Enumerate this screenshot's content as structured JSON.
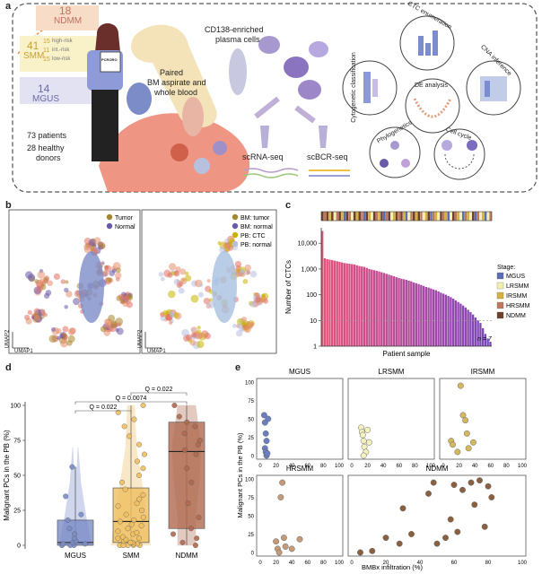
{
  "panel_labels": {
    "a": "a",
    "b": "b",
    "c": "c",
    "d": "d",
    "e": "e"
  },
  "panel_a": {
    "groups": {
      "ndmm_n": "18",
      "ndmm": "NDMM",
      "smm_n": "41",
      "smm": "SMM",
      "hr_n": "15",
      "hr": "high-risk",
      "ir_n": "11",
      "ir": "int.-risk",
      "lr_n": "15",
      "lr": "low-risk",
      "mgus_n": "14",
      "mgus": "MGUS"
    },
    "patients": "73 patients",
    "donors_1": "28 healthy",
    "donors_2": "donors",
    "clipboard": "PCRORO",
    "paired_1": "Paired",
    "paired_2": "BM aspirate and",
    "paired_3": "whole blood",
    "cd138_1": "CD138-enriched",
    "cd138_2": "plasma cells",
    "scrna": "scRNA-seq",
    "scbcr": "scBCR-seq",
    "analyses": [
      "Cytogenetic classification",
      "CTC enumeration",
      "DE analysis",
      "CNA inference",
      "Phylogenetics",
      "Cell cycle"
    ]
  },
  "panel_b": {
    "legend_left": [
      "Tumor",
      "Normal"
    ],
    "legend_right": [
      "BM: tumor",
      "BM: normal",
      "PB: CTC",
      "PB: normal"
    ],
    "colors_left": [
      "#a8862e",
      "#6b58a8"
    ],
    "colors_right": [
      "#a8862e",
      "#6b58a8",
      "#c8b400",
      "#b8bde0"
    ],
    "xaxis": "UMAP1",
    "yaxis": "UMAP2"
  },
  "chart_data": [
    {
      "type": "bar",
      "panel": "c",
      "ylabel": "Number of CTCs",
      "xlabel": "Patient sample",
      "yticks": [
        "10,000",
        "1,000",
        "100",
        "10",
        "1"
      ],
      "threshold": 10,
      "annotation": "n = 7",
      "legend_title": "Stage",
      "legend": [
        "MGUS",
        "LRSMM",
        "IRSMM",
        "HRSMM",
        "NDMM"
      ],
      "legend_colors": [
        "#5a6db5",
        "#f4f0b0",
        "#d8b040",
        "#c07a5a",
        "#6e3f2a"
      ],
      "values": [
        30000,
        2600,
        2400,
        2300,
        2200,
        2100,
        2000,
        1900,
        1800,
        1700,
        1650,
        1600,
        1550,
        1500,
        1400,
        1300,
        1250,
        1200,
        1100,
        1000,
        950,
        900,
        850,
        800,
        750,
        700,
        650,
        600,
        560,
        520,
        480,
        450,
        420,
        400,
        380,
        350,
        330,
        300,
        280,
        260,
        240,
        220,
        200,
        190,
        175,
        160,
        150,
        135,
        120,
        110,
        100,
        90,
        80,
        70,
        60,
        52,
        45,
        38,
        32,
        26,
        21,
        17,
        13,
        10,
        8,
        5,
        3,
        2,
        1.5
      ],
      "stages": [
        4,
        3,
        4,
        2,
        4,
        1,
        3,
        4,
        2,
        0,
        4,
        3,
        1,
        4,
        2,
        4,
        3,
        0,
        4,
        2,
        1,
        4,
        3,
        2,
        4,
        0,
        3,
        4,
        1,
        2,
        4,
        3,
        4,
        2,
        0,
        1,
        3,
        4,
        2,
        4,
        3,
        1,
        2,
        4,
        0,
        3,
        2,
        1,
        4,
        3,
        2,
        0,
        1,
        4,
        3,
        2,
        1,
        0,
        3,
        2,
        1,
        4,
        0,
        3,
        1,
        2,
        0,
        1,
        3
      ]
    },
    {
      "type": "box",
      "panel": "d",
      "ylabel": "Malignant PCs in the PB (%)",
      "categories": [
        "MGUS",
        "SMM",
        "NDMM"
      ],
      "colors": [
        "#7b8cc8",
        "#f0c060",
        "#b06a50"
      ],
      "yticks": [
        "0",
        "25",
        "50",
        "75",
        "100"
      ],
      "brackets": [
        {
          "label": "Q = 0.022",
          "from": 1,
          "to": 2
        },
        {
          "label": "Q = 0.0074",
          "from": 0,
          "to": 2
        },
        {
          "label": "Q = 0.022",
          "from": 0,
          "to": 1
        }
      ],
      "boxes": [
        {
          "q1": 0,
          "median": 2,
          "q3": 18,
          "lo": 0,
          "hi": 56
        },
        {
          "q1": 2,
          "median": 17,
          "q3": 41,
          "lo": 0,
          "hi": 100
        },
        {
          "q1": 12,
          "median": 67,
          "q3": 88,
          "lo": 0,
          "hi": 100
        }
      ],
      "points": [
        [
          0,
          0,
          0,
          1,
          1,
          2,
          3,
          5,
          8,
          12,
          18,
          22,
          35,
          56
        ],
        [
          0,
          0,
          0,
          0,
          0,
          1,
          1,
          2,
          2,
          3,
          4,
          5,
          5,
          6,
          8,
          9,
          10,
          12,
          14,
          15,
          17,
          18,
          20,
          22,
          25,
          28,
          30,
          33,
          36,
          40,
          45,
          50,
          55,
          60,
          65,
          72,
          78,
          85,
          90,
          95,
          100
        ],
        [
          0,
          2,
          5,
          8,
          12,
          20,
          30,
          45,
          55,
          65,
          68,
          72,
          75,
          80,
          85,
          88,
          92,
          100
        ]
      ]
    },
    {
      "type": "scatter",
      "panel": "e",
      "xlabel": "BMBx infiltration (%)",
      "ylabel": "Malignant PCs in the PB (%)",
      "xticks": [
        "0",
        "20",
        "40",
        "60",
        "80",
        "100"
      ],
      "yticks": [
        "0",
        "25",
        "50",
        "75",
        "100"
      ],
      "panels": [
        {
          "name": "MGUS",
          "color": "#6a7ec0",
          "points": [
            [
              5,
              55
            ],
            [
              6,
              45
            ],
            [
              7,
              30
            ],
            [
              8,
              20
            ],
            [
              6,
              10
            ],
            [
              7,
              5
            ],
            [
              8,
              0
            ],
            [
              9,
              3
            ],
            [
              10,
              50
            ]
          ]
        },
        {
          "name": "LRSMM",
          "color": "#f4f0c0",
          "points": [
            [
              12,
              38
            ],
            [
              13,
              32
            ],
            [
              14,
              28
            ],
            [
              15,
              20
            ],
            [
              16,
              12
            ],
            [
              18,
              5
            ],
            [
              15,
              0
            ],
            [
              20,
              35
            ],
            [
              22,
              18
            ]
          ]
        },
        {
          "name": "IRSMM",
          "color": "#d4b860",
          "points": [
            [
              10,
              20
            ],
            [
              12,
              15
            ],
            [
              18,
              5
            ],
            [
              22,
              95
            ],
            [
              25,
              55
            ],
            [
              28,
              48
            ],
            [
              30,
              30
            ],
            [
              32,
              10
            ],
            [
              38,
              18
            ]
          ]
        },
        {
          "name": "HRSMM",
          "color": "#c49a78",
          "points": [
            [
              20,
              15
            ],
            [
              22,
              5
            ],
            [
              24,
              0
            ],
            [
              26,
              75
            ],
            [
              28,
              95
            ],
            [
              30,
              20
            ],
            [
              32,
              8
            ],
            [
              40,
              5
            ],
            [
              50,
              18
            ]
          ]
        },
        {
          "name": "NDMM",
          "color": "#8a6040",
          "points": [
            [
              5,
              0
            ],
            [
              12,
              2
            ],
            [
              20,
              20
            ],
            [
              28,
              12
            ],
            [
              30,
              60
            ],
            [
              35,
              25
            ],
            [
              45,
              80
            ],
            [
              48,
              95
            ],
            [
              50,
              12
            ],
            [
              55,
              20
            ],
            [
              58,
              45
            ],
            [
              60,
              92
            ],
            [
              62,
              28
            ],
            [
              65,
              85
            ],
            [
              70,
              95
            ],
            [
              72,
              65
            ],
            [
              75,
              98
            ],
            [
              78,
              35
            ],
            [
              80,
              90
            ],
            [
              82,
              75
            ]
          ]
        }
      ]
    }
  ]
}
